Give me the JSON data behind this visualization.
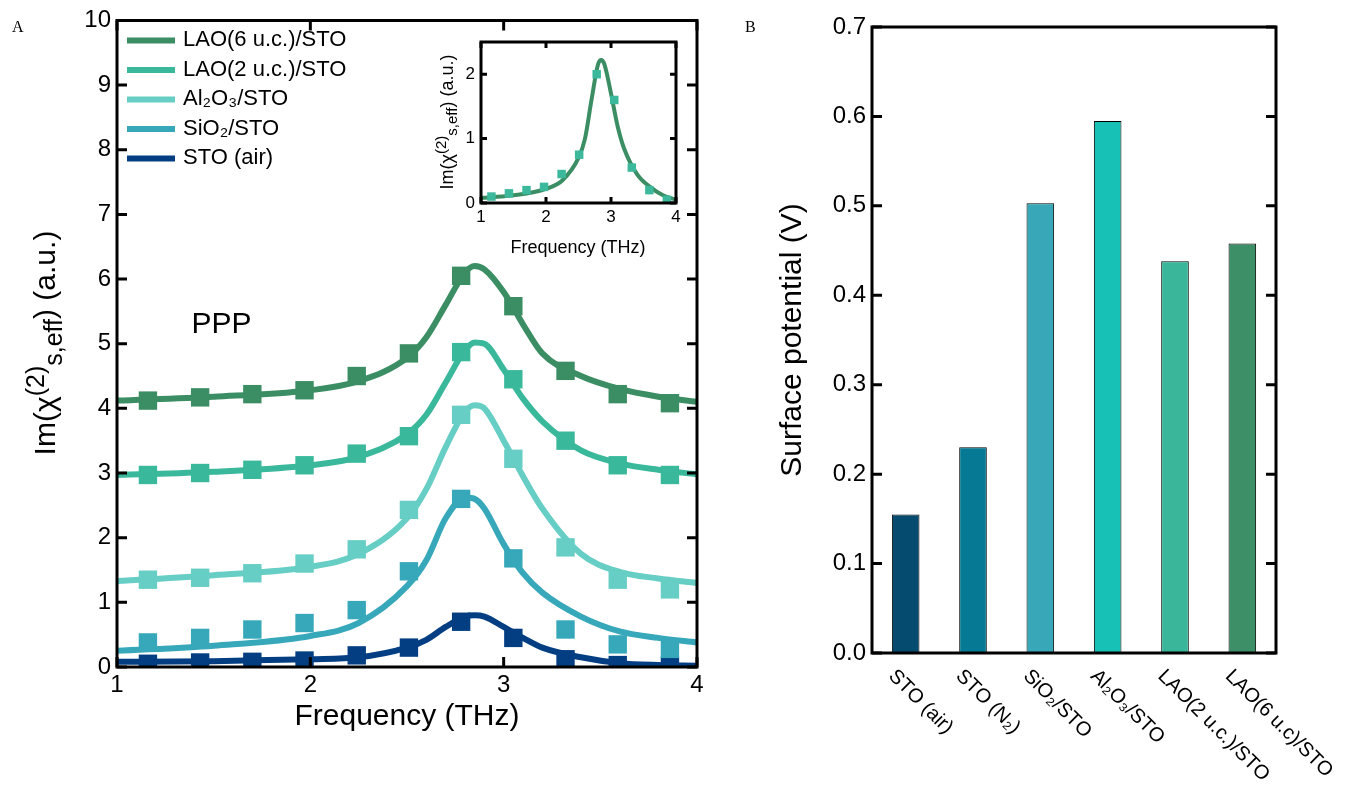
{
  "chart_data": [
    {
      "type": "line",
      "xlabel": "Frequency (THz)",
      "ylabel": "Im(χ$^{(2)}$$_{s,eff}$) (a.u.)",
      "annotations": [
        "A",
        "PPP"
      ],
      "xlim": [
        1,
        4
      ],
      "xticks": [
        1,
        2,
        3,
        4
      ],
      "ylim": [
        0,
        10
      ],
      "yticks": [
        0,
        1,
        2,
        3,
        4,
        5,
        6,
        7,
        8,
        9,
        10
      ],
      "grid": false,
      "legend": "top left",
      "series": [
        {
          "name": "LAO(6 u.c.)/STO",
          "type": "line",
          "marker": "none",
          "color": "#3b8e64",
          "x": [
            1,
            1.5,
            2,
            2.25,
            2.5,
            2.6,
            2.7,
            2.8,
            2.85,
            2.9,
            3,
            3.1,
            3.2,
            3.4,
            3.6,
            3.8,
            4
          ],
          "values": [
            4.12,
            4.18,
            4.28,
            4.42,
            4.78,
            5.1,
            5.6,
            6.1,
            6.2,
            6.15,
            5.8,
            5.3,
            4.85,
            4.5,
            4.3,
            4.18,
            4.1
          ]
        },
        {
          "type": "scatter",
          "marker": "square",
          "color": "#3b8e64",
          "x": [
            1.16,
            1.43,
            1.7,
            1.97,
            2.24,
            2.51,
            2.78,
            3.05,
            3.32,
            3.59,
            3.86
          ],
          "values": [
            4.12,
            4.17,
            4.22,
            4.28,
            4.5,
            4.85,
            6.05,
            5.58,
            4.58,
            4.22,
            4.08
          ]
        },
        {
          "name": "LAO(2 u.c.)/STO",
          "type": "line",
          "marker": "none",
          "color": "#3ab89b",
          "x": [
            1,
            1.5,
            2,
            2.25,
            2.5,
            2.6,
            2.7,
            2.8,
            2.85,
            2.9,
            3,
            3.1,
            3.2,
            3.4,
            3.6,
            3.8,
            4
          ],
          "values": [
            2.97,
            3.02,
            3.12,
            3.25,
            3.6,
            3.9,
            4.4,
            4.9,
            5.02,
            5.0,
            4.6,
            4.15,
            3.8,
            3.35,
            3.15,
            3.05,
            2.98
          ]
        },
        {
          "type": "scatter",
          "marker": "square",
          "color": "#3ab89b",
          "x": [
            1.16,
            1.43,
            1.7,
            1.97,
            2.24,
            2.51,
            2.78,
            3.05,
            3.32,
            3.59,
            3.86
          ],
          "values": [
            2.97,
            3.0,
            3.05,
            3.12,
            3.3,
            3.57,
            4.87,
            4.45,
            3.5,
            3.12,
            2.97
          ]
        },
        {
          "name": "Al₂O₃/STO",
          "type": "line",
          "marker": "none",
          "color": "#66cec4",
          "x": [
            1,
            1.5,
            2,
            2.25,
            2.5,
            2.6,
            2.7,
            2.8,
            2.85,
            2.9,
            3,
            3.1,
            3.2,
            3.4,
            3.6,
            3.8,
            4
          ],
          "values": [
            1.33,
            1.42,
            1.55,
            1.75,
            2.3,
            2.75,
            3.4,
            3.95,
            4.05,
            4.0,
            3.5,
            2.95,
            2.45,
            1.75,
            1.47,
            1.37,
            1.3
          ]
        },
        {
          "type": "scatter",
          "marker": "square",
          "color": "#66cec4",
          "x": [
            1.16,
            1.43,
            1.7,
            1.97,
            2.24,
            2.51,
            2.78,
            3.05,
            3.32,
            3.59,
            3.86
          ],
          "values": [
            1.35,
            1.38,
            1.45,
            1.6,
            1.82,
            2.43,
            3.9,
            3.22,
            1.85,
            1.35,
            1.2
          ]
        },
        {
          "name": "SiO₂/STO",
          "type": "line",
          "marker": "none",
          "color": "#37a8ba",
          "x": [
            1,
            1.5,
            2,
            2.25,
            2.5,
            2.6,
            2.7,
            2.8,
            2.85,
            2.9,
            3,
            3.1,
            3.2,
            3.4,
            3.6,
            3.8,
            4
          ],
          "values": [
            0.25,
            0.33,
            0.48,
            0.68,
            1.25,
            1.65,
            2.3,
            2.62,
            2.6,
            2.45,
            1.9,
            1.45,
            1.15,
            0.78,
            0.55,
            0.45,
            0.38
          ]
        },
        {
          "type": "scatter",
          "marker": "square",
          "color": "#37a8ba",
          "x": [
            1.16,
            1.43,
            1.7,
            1.97,
            2.24,
            2.51,
            2.78,
            3.05,
            3.32,
            3.59,
            3.86
          ],
          "values": [
            0.38,
            0.45,
            0.58,
            0.68,
            0.88,
            1.48,
            2.6,
            1.68,
            0.58,
            0.35,
            0.28
          ]
        },
        {
          "name": "STO (air)",
          "type": "line",
          "marker": "none",
          "color": "#033e82",
          "x": [
            1,
            1.5,
            2,
            2.25,
            2.5,
            2.6,
            2.7,
            2.8,
            2.85,
            2.9,
            3,
            3.1,
            3.2,
            3.4,
            3.6,
            3.8,
            4
          ],
          "values": [
            0.08,
            0.09,
            0.12,
            0.15,
            0.3,
            0.42,
            0.62,
            0.78,
            0.8,
            0.78,
            0.62,
            0.45,
            0.3,
            0.15,
            0.06,
            0.03,
            0.02
          ]
        },
        {
          "type": "scatter",
          "marker": "square",
          "color": "#033e82",
          "x": [
            1.16,
            1.43,
            1.7,
            1.97,
            2.24,
            2.51,
            2.78,
            3.05,
            3.32,
            3.59,
            3.86
          ],
          "values": [
            0.05,
            0.07,
            0.08,
            0.1,
            0.18,
            0.3,
            0.7,
            0.45,
            0.12,
            0.03,
            0.02
          ]
        }
      ]
    },
    {
      "type": "line",
      "xlabel": "Frequency (THz)",
      "ylabel": "Im(χ$^{(2)}$$_{s,eff}$) (a.u.)",
      "xlim": [
        1,
        4
      ],
      "xticks": [
        1,
        2,
        3,
        4
      ],
      "ylim": [
        0,
        2.5
      ],
      "yticks": [
        0,
        1,
        2
      ],
      "grid": false,
      "series": [
        {
          "type": "line",
          "marker": "none",
          "color": "#3b8e64",
          "x": [
            1,
            1.5,
            2,
            2.25,
            2.5,
            2.6,
            2.7,
            2.8,
            2.85,
            2.9,
            3,
            3.1,
            3.2,
            3.4,
            3.6,
            3.8,
            4
          ],
          "values": [
            0.08,
            0.12,
            0.22,
            0.35,
            0.7,
            1.0,
            1.6,
            2.15,
            2.22,
            2.15,
            1.7,
            1.2,
            0.85,
            0.45,
            0.25,
            0.12,
            0.05
          ]
        },
        {
          "type": "scatter",
          "marker": "square",
          "color": "#3cb99d",
          "x": [
            1.16,
            1.43,
            1.7,
            1.97,
            2.24,
            2.51,
            2.78,
            3.05,
            3.32,
            3.59,
            3.86
          ],
          "values": [
            0.1,
            0.15,
            0.2,
            0.25,
            0.45,
            0.75,
            2.0,
            1.6,
            0.55,
            0.2,
            0.05
          ]
        }
      ]
    },
    {
      "type": "bar",
      "ylabel": "Surface potential (V)",
      "annotations": [
        "B"
      ],
      "categories": [
        "STO (air)",
        "STO (N₂)",
        "SiO₂/STO",
        "Al₂O₃/STO",
        "LAO(2 u.c.)/STO",
        "LAO(6 u.c)/STO"
      ],
      "values": [
        0.155,
        0.23,
        0.503,
        0.595,
        0.438,
        0.458
      ],
      "colors": [
        "#054b70",
        "#067a95",
        "#38a8b9",
        "#18c1b5",
        "#3ab79b",
        "#3c8f66"
      ],
      "ylim": [
        0,
        0.7
      ],
      "yticks": [
        {
          "value": 0,
          "label": "0.0"
        },
        0.1,
        0.2,
        0.3,
        0.4,
        0.5,
        0.6,
        0.7
      ],
      "grid": false
    }
  ]
}
